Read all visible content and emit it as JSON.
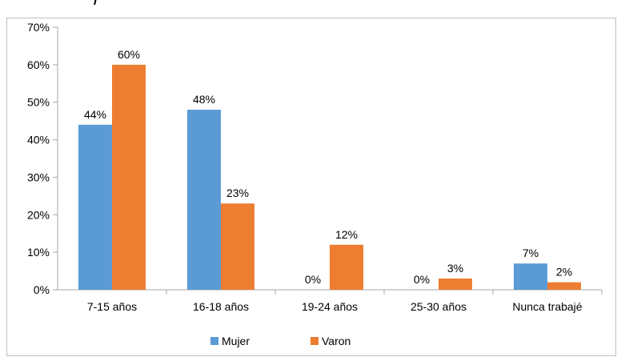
{
  "chart_data": {
    "type": "bar",
    "title": "",
    "xlabel": "",
    "ylabel": "",
    "categories": [
      "7-15 años",
      "16-18 años",
      "19-24 años",
      "25-30 años",
      "Nunca trabajé"
    ],
    "series": [
      {
        "name": "Mujer",
        "values": [
          44,
          48,
          0,
          0,
          7
        ],
        "labels": [
          "44%",
          "48%",
          "0%",
          "0%",
          "7%"
        ],
        "color": "#5b9bd5"
      },
      {
        "name": "Varon",
        "values": [
          60,
          23,
          12,
          3,
          2
        ],
        "labels": [
          "60%",
          "23%",
          "12%",
          "3%",
          "2%"
        ],
        "color": "#ed7d31"
      }
    ],
    "ylim": [
      0,
      70
    ],
    "yticks": [
      0,
      10,
      20,
      30,
      40,
      50,
      60,
      70
    ],
    "ytick_labels": [
      "0%",
      "10%",
      "20%",
      "30%",
      "40%",
      "50%",
      "60%",
      "70%"
    ],
    "grid": false,
    "legend": "bottom"
  }
}
